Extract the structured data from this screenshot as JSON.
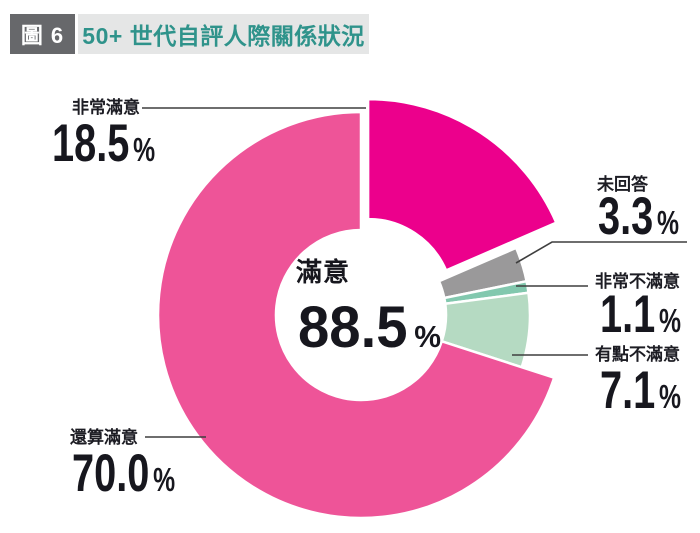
{
  "header": {
    "figure_tag": "圖 6",
    "title": "50+ 世代自評人際關係狀況"
  },
  "chart_data": {
    "type": "pie",
    "subtype": "donut",
    "title": "50+ 世代自評人際關係狀況",
    "unit": "%",
    "center_label": "滿意",
    "center_value": 88.5,
    "center_display": "88.5",
    "legend_position": "outside-callouts",
    "slices": [
      {
        "label": "非常滿意",
        "value": 18.5,
        "display": "18.5",
        "color": "#ec008c"
      },
      {
        "label": "未回答",
        "value": 3.3,
        "display": "3.3",
        "color": "#9a999a"
      },
      {
        "label": "非常不滿意",
        "value": 1.1,
        "display": "1.1",
        "color": "#82c8ae"
      },
      {
        "label": "有點不滿意",
        "value": 7.1,
        "display": "7.1",
        "color": "#b5dac2"
      },
      {
        "label": "還算滿意",
        "value": 70.0,
        "display": "70.0",
        "color": "#ee5498"
      }
    ]
  }
}
